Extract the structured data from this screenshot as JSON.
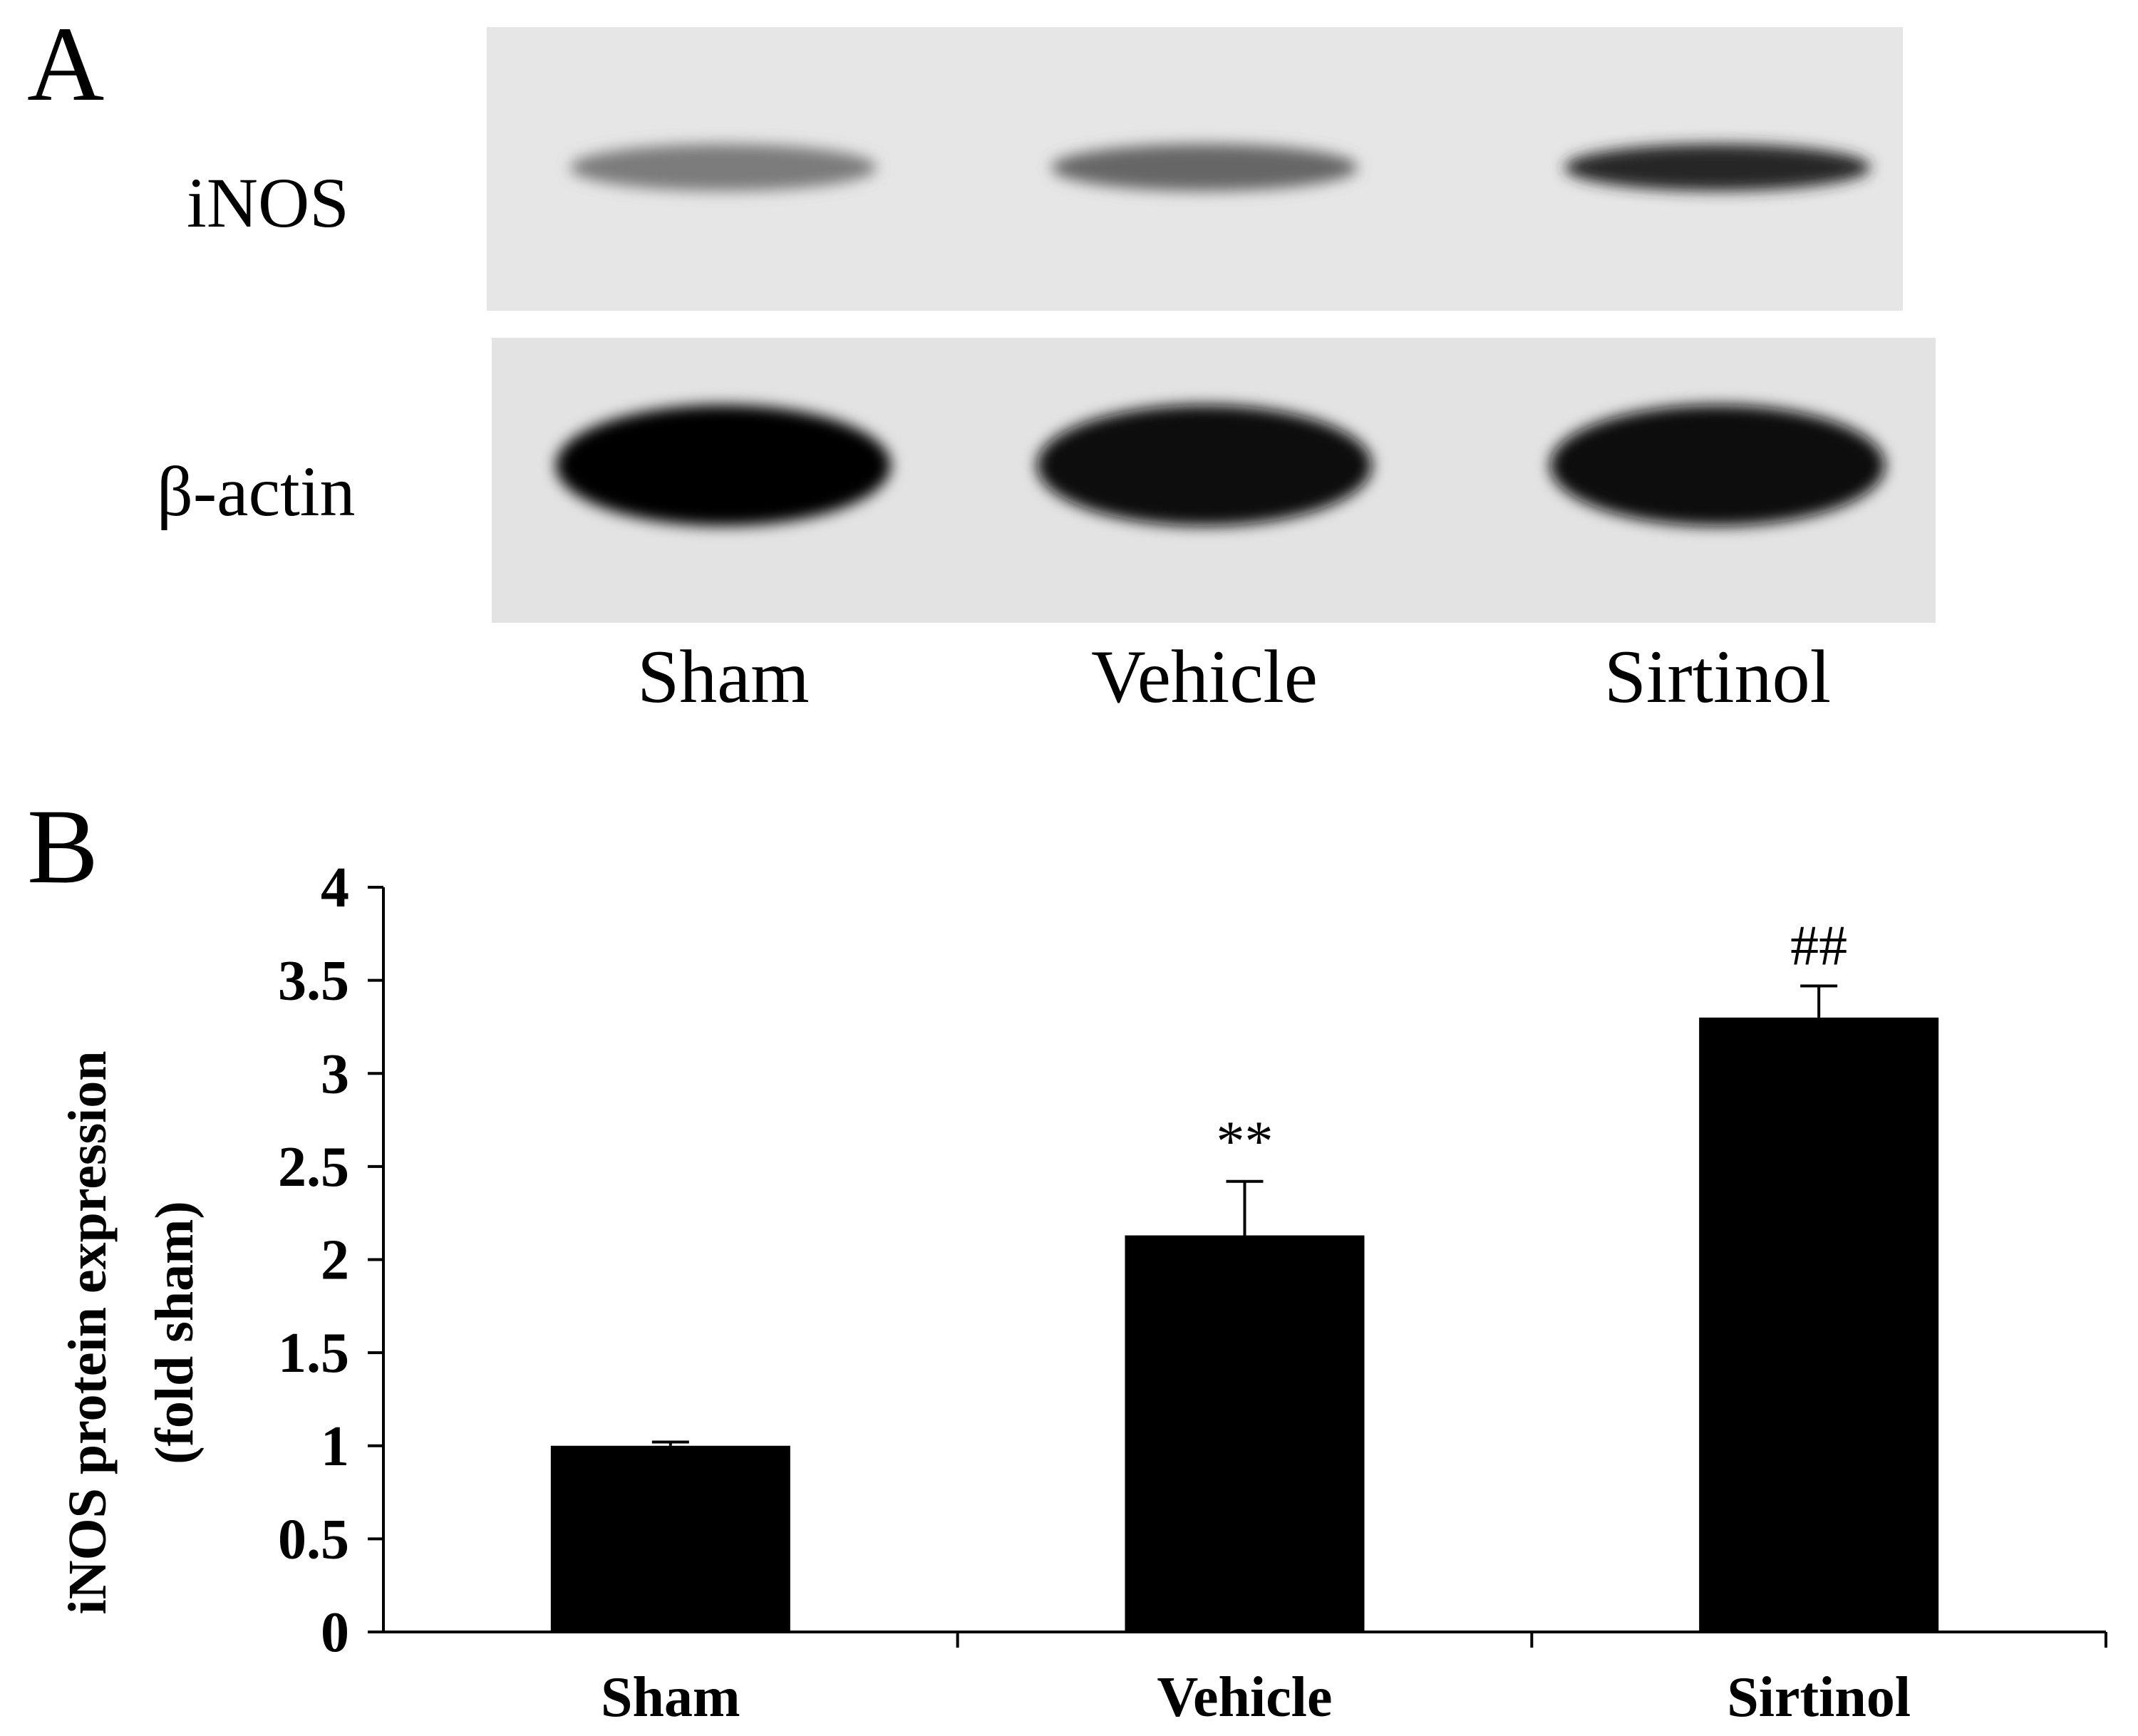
{
  "panel_a": {
    "letter": "A",
    "rows": [
      {
        "label": "iNOS",
        "band_intensity": [
          0.45,
          0.55,
          0.85
        ]
      },
      {
        "label": "β-actin",
        "band_intensity": [
          1.0,
          0.97,
          0.95
        ]
      }
    ],
    "lanes": [
      "Sham",
      "Vehicle",
      "Sirtinol"
    ]
  },
  "panel_b": {
    "letter": "B"
  },
  "chart_data": {
    "type": "bar",
    "categories": [
      "Sham",
      "Vehicle",
      "Sirtinol"
    ],
    "values": [
      1.0,
      2.13,
      3.3
    ],
    "errors": [
      0.02,
      0.29,
      0.17
    ],
    "annotations": [
      "",
      "**",
      "##"
    ],
    "ylabel_lines": [
      "iNOS protein expression",
      "(fold sham)"
    ],
    "ylim": [
      0,
      4
    ],
    "yticks": [
      "0",
      "0.5",
      "1",
      "1.5",
      "2",
      "2.5",
      "3",
      "3.5",
      "4"
    ],
    "ytick_values": [
      0,
      0.5,
      1,
      1.5,
      2,
      2.5,
      3,
      3.5,
      4
    ],
    "grid": false,
    "bar_color": "#000000"
  }
}
